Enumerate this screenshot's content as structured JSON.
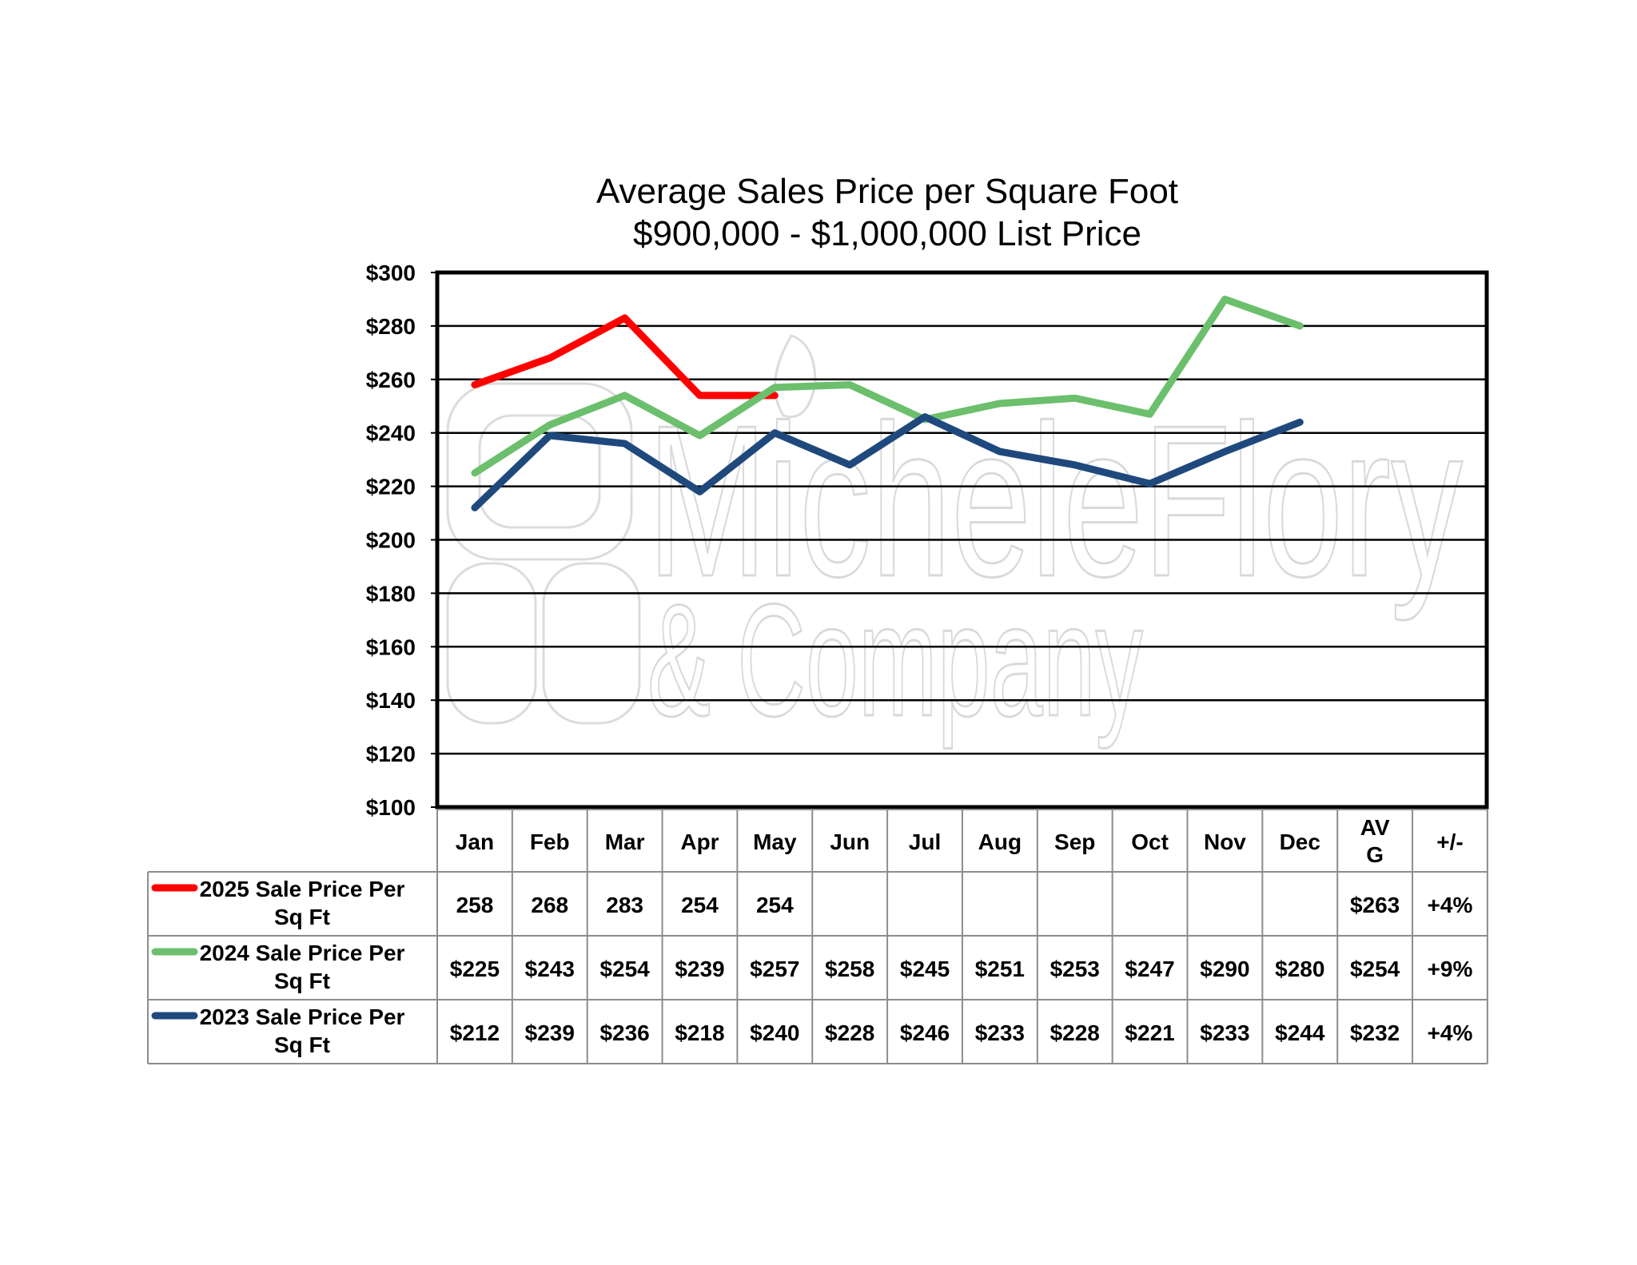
{
  "chart_data": {
    "type": "line",
    "title": "Average Sales Price per Square Foot",
    "subtitle": "$900,000 - $1,000,000 List Price",
    "categories": [
      "Jan",
      "Feb",
      "Mar",
      "Apr",
      "May",
      "Jun",
      "Jul",
      "Aug",
      "Sep",
      "Oct",
      "Nov",
      "Dec"
    ],
    "extra_columns": [
      "AV\nG",
      "+/-"
    ],
    "ylim": [
      100,
      300
    ],
    "yticks": [
      100,
      120,
      140,
      160,
      180,
      200,
      220,
      240,
      260,
      280,
      300
    ],
    "ytick_labels": [
      "$100",
      "$120",
      "$140",
      "$160",
      "$180",
      "$200",
      "$220",
      "$240",
      "$260",
      "$280",
      "$300"
    ],
    "grid": true,
    "legend": "data-table-left",
    "series": [
      {
        "name": "2025 Sale Price Per Sq Ft",
        "color": "#ff0000",
        "values": [
          258,
          268,
          283,
          254,
          254,
          null,
          null,
          null,
          null,
          null,
          null,
          null
        ],
        "table_values": [
          "258",
          "268",
          "283",
          "254",
          "254",
          "",
          "",
          "",
          "",
          "",
          "",
          ""
        ],
        "avg": "$263",
        "change": "+4%"
      },
      {
        "name": "2024 Sale Price Per Sq Ft",
        "color": "#6cbf6c",
        "values": [
          225,
          243,
          254,
          239,
          257,
          258,
          245,
          251,
          253,
          247,
          290,
          280
        ],
        "table_values": [
          "$225",
          "$243",
          "$254",
          "$239",
          "$257",
          "$258",
          "$245",
          "$251",
          "$253",
          "$247",
          "$290",
          "$280"
        ],
        "avg": "$254",
        "change": "+9%"
      },
      {
        "name": "2023 Sale Price Per Sq Ft",
        "color": "#1f497d",
        "values": [
          212,
          239,
          236,
          218,
          240,
          228,
          246,
          233,
          228,
          221,
          233,
          244
        ],
        "table_values": [
          "$212",
          "$239",
          "$236",
          "$218",
          "$240",
          "$228",
          "$246",
          "$233",
          "$228",
          "$221",
          "$233",
          "$244"
        ],
        "avg": "$232",
        "change": "+4%"
      }
    ]
  },
  "watermark": {
    "line1": "MicheleFlory",
    "line2": "& Company"
  }
}
